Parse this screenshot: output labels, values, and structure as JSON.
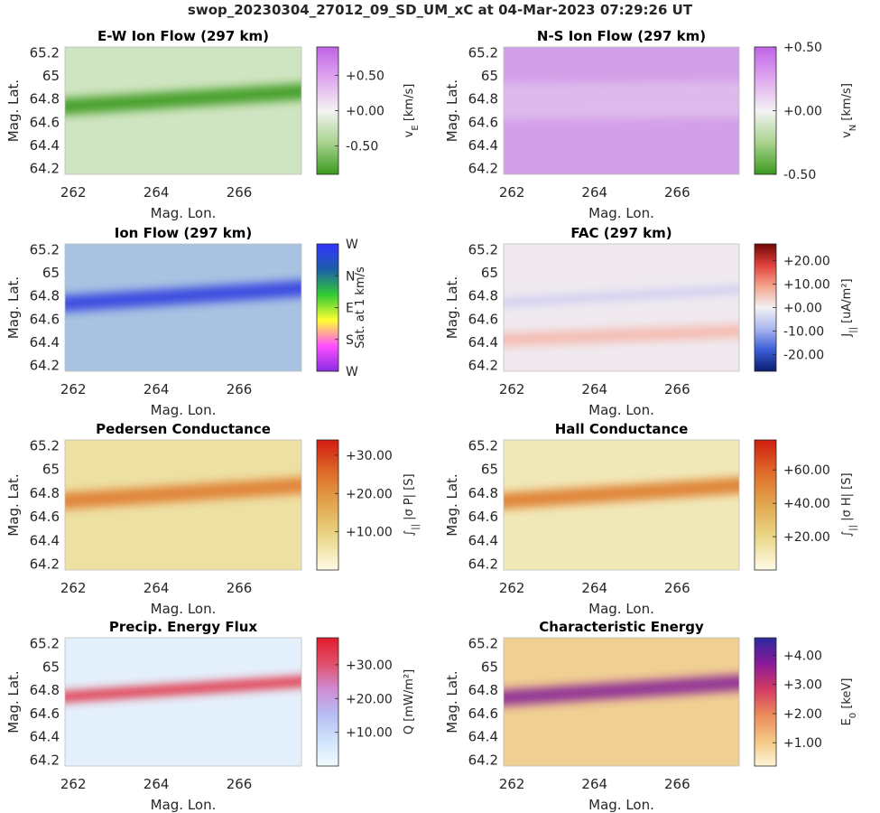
{
  "figure_title": "swop_20230304_27012_09_SD_UM_xC at 04-Mar-2023 07:29:26 UT",
  "chart_data": [
    {
      "type": "heatmap",
      "title": "E-W Ion Flow (297 km)",
      "xlabel": "Mag. Lon.",
      "ylabel": "Mag. Lat.",
      "xlim": [
        261.8,
        267.5
      ],
      "ylim": [
        64.15,
        65.25
      ],
      "xticks": [
        "262",
        "264",
        "266"
      ],
      "yticks": [
        "64.2",
        "64.4",
        "64.6",
        "64.8",
        "65",
        "65.2"
      ],
      "colorbar": {
        "label_main": "v",
        "label_sub": "E",
        "label_unit": " [km/s]",
        "range": [
          -0.9,
          0.9
        ],
        "ticks": [
          {
            "v": 0.5,
            "t": "+0.50"
          },
          {
            "v": 0.0,
            "t": "+0.00"
          },
          {
            "v": -0.5,
            "t": "-0.50"
          }
        ],
        "colors": [
          "#3a9a1e",
          "#a9d38f",
          "#f3f3f3",
          "#dfa8ee",
          "#c063e6"
        ]
      },
      "feature": {
        "dominant": "eastward/westward flow band negative (green) along 64.7-64.9 lat, strongest near -0.9 km/s",
        "band_lat_start": 64.72,
        "band_lat_end": 64.87
      },
      "colors": {
        "background": "#cfe4c1",
        "band": "#3a9a1e"
      }
    },
    {
      "type": "heatmap",
      "title": "N-S Ion Flow (297 km)",
      "xlabel": "Mag. Lon.",
      "ylabel": "Mag. Lat.",
      "xlim": [
        261.8,
        267.5
      ],
      "ylim": [
        64.15,
        65.25
      ],
      "xticks": [
        "262",
        "264",
        "266"
      ],
      "yticks": [
        "64.2",
        "64.4",
        "64.6",
        "64.8",
        "65",
        "65.2"
      ],
      "colorbar": {
        "label_main": "v",
        "label_sub": "N",
        "label_unit": " [km/s]",
        "range": [
          -0.5,
          0.5
        ],
        "ticks": [
          {
            "v": 0.5,
            "t": "+0.50"
          },
          {
            "v": 0.0,
            "t": "+0.00"
          },
          {
            "v": -0.5,
            "t": "-0.50"
          }
        ],
        "colors": [
          "#3a9a1e",
          "#a9d38f",
          "#f3f3f3",
          "#dfa8ee",
          "#c063e6"
        ]
      },
      "feature": {
        "dominant": "uniform northward flow ~+0.3 km/s (violet)"
      },
      "colors": {
        "background": "#d39fe8",
        "band": "#e6cdf0"
      }
    },
    {
      "type": "heatmap",
      "title": "Ion Flow (297 km)",
      "xlabel": "Mag. Lon.",
      "ylabel": "Mag. Lat.",
      "xlim": [
        261.8,
        267.5
      ],
      "ylim": [
        64.15,
        65.25
      ],
      "xticks": [
        "262",
        "264",
        "266"
      ],
      "yticks": [
        "64.2",
        "64.4",
        "64.6",
        "64.8",
        "65",
        "65.2"
      ],
      "colorbar": {
        "label_main": "Sat. at 1 km/s",
        "label_sub": "",
        "label_unit": "",
        "ticks": [
          {
            "v": 4,
            "t": "W"
          },
          {
            "v": 3,
            "t": "N"
          },
          {
            "v": 2,
            "t": "E"
          },
          {
            "v": 1,
            "t": "S"
          },
          {
            "v": 0,
            "t": "W"
          }
        ],
        "colors": [
          "#8a2be2",
          "#ff4fff",
          "#ffff33",
          "#33cc33",
          "#1b5fa8",
          "#3333ff"
        ]
      },
      "feature": {
        "dominant": "westward flow (blue) band along 64.7-64.9 lat"
      },
      "colors": {
        "background": "#a8c3e2",
        "band": "#3340e0"
      }
    },
    {
      "type": "heatmap",
      "title": "FAC (297 km)",
      "xlabel": "Mag. Lon.",
      "ylabel": "Mag. Lat.",
      "xlim": [
        261.8,
        267.5
      ],
      "ylim": [
        64.15,
        65.25
      ],
      "xticks": [
        "262",
        "264",
        "266"
      ],
      "yticks": [
        "64.2",
        "64.4",
        "64.6",
        "64.8",
        "65",
        "65.2"
      ],
      "colorbar": {
        "label_main": "J",
        "label_sub": "||",
        "label_unit": " [uA/m²]",
        "range": [
          -27,
          27
        ],
        "ticks": [
          {
            "v": 20,
            "t": "+20.00"
          },
          {
            "v": 10,
            "t": "+10.00"
          },
          {
            "v": 0,
            "t": "+0.00"
          },
          {
            "v": -10,
            "t": "-10.00"
          },
          {
            "v": -20,
            "t": "-20.00"
          }
        ],
        "colors": [
          "#0a1e6e",
          "#3a5cd6",
          "#aab6f0",
          "#f2f2f2",
          "#f4a48e",
          "#e0403a",
          "#6e0808"
        ]
      },
      "feature": {
        "dominant": "weak downward current band near 64.8 lat (blue), weak upward band near 64.45 lat (red)"
      },
      "colors": {
        "background": "#efe9ef",
        "band": "#c6c8f2"
      }
    },
    {
      "type": "heatmap",
      "title": "Pedersen Conductance",
      "xlabel": "Mag. Lon.",
      "ylabel": "Mag. Lat.",
      "xlim": [
        261.8,
        267.5
      ],
      "ylim": [
        64.15,
        65.25
      ],
      "xticks": [
        "262",
        "264",
        "266"
      ],
      "yticks": [
        "64.2",
        "64.4",
        "64.6",
        "64.8",
        "65",
        "65.2"
      ],
      "colorbar": {
        "label_main": "∫",
        "label_sub": "||",
        "label_unit": " |σ P| [S]",
        "range": [
          0,
          34
        ],
        "ticks": [
          {
            "v": 30,
            "t": "+30.00"
          },
          {
            "v": 20,
            "t": "+20.00"
          },
          {
            "v": 10,
            "t": "+10.00"
          }
        ],
        "colors": [
          "#fffbe8",
          "#ead88a",
          "#e2a850",
          "#de6b28",
          "#d01c10"
        ]
      },
      "feature": {
        "dominant": "conductance peak ~25 S along 64.75 lat near 262-264 lon"
      },
      "colors": {
        "background": "#ede0a3",
        "band": "#df7a2f"
      }
    },
    {
      "type": "heatmap",
      "title": "Hall Conductance",
      "xlabel": "Mag. Lon.",
      "ylabel": "Mag. Lat.",
      "xlim": [
        261.8,
        267.5
      ],
      "ylim": [
        64.15,
        65.25
      ],
      "xticks": [
        "262",
        "264",
        "266"
      ],
      "yticks": [
        "64.2",
        "64.4",
        "64.6",
        "64.8",
        "65",
        "65.2"
      ],
      "colorbar": {
        "label_main": "∫",
        "label_sub": "||",
        "label_unit": " |σ H| [S]",
        "range": [
          0,
          78
        ],
        "ticks": [
          {
            "v": 60,
            "t": "+60.00"
          },
          {
            "v": 40,
            "t": "+40.00"
          },
          {
            "v": 20,
            "t": "+20.00"
          }
        ],
        "colors": [
          "#fffbe8",
          "#ead88a",
          "#e2a850",
          "#de6b28",
          "#d01c10"
        ]
      },
      "feature": {
        "dominant": "conductance peak ~60 S along 64.8 lat near 263-264 lon"
      },
      "colors": {
        "background": "#f1e8b8",
        "band": "#de7a2a"
      }
    },
    {
      "type": "heatmap",
      "title": "Precip. Energy Flux",
      "xlabel": "Mag. Lon.",
      "ylabel": "Mag. Lat.",
      "xlim": [
        261.8,
        267.5
      ],
      "ylim": [
        64.15,
        65.25
      ],
      "xticks": [
        "262",
        "264",
        "266"
      ],
      "yticks": [
        "64.2",
        "64.4",
        "64.6",
        "64.8",
        "65",
        "65.2"
      ],
      "colorbar": {
        "label_main": "Q",
        "label_sub": "",
        "label_unit": " [mW/m²]",
        "range": [
          0,
          38
        ],
        "ticks": [
          {
            "v": 30,
            "t": "+30.00"
          },
          {
            "v": 20,
            "t": "+20.00"
          },
          {
            "v": 10,
            "t": "+10.00"
          }
        ],
        "colors": [
          "#f2fafe",
          "#cfe3fb",
          "#b7bdf4",
          "#cf8bd3",
          "#e0506a",
          "#e01c2c"
        ]
      },
      "feature": {
        "dominant": "narrow high energy flux arc ~35 mW/m² along 64.75-64.85 lat"
      },
      "colors": {
        "background": "#e3f0fc",
        "band": "#e0283a"
      }
    },
    {
      "type": "heatmap",
      "title": "Characteristic Energy",
      "xlabel": "Mag. Lon.",
      "ylabel": "Mag. Lat.",
      "xlim": [
        261.8,
        267.5
      ],
      "ylim": [
        64.15,
        65.25
      ],
      "xticks": [
        "262",
        "264",
        "266"
      ],
      "yticks": [
        "64.2",
        "64.4",
        "64.6",
        "64.8",
        "65",
        "65.2"
      ],
      "colorbar": {
        "label_main": "E",
        "label_sub": "0",
        "label_unit": " [keV]",
        "range": [
          0.2,
          4.6
        ],
        "ticks": [
          {
            "v": 4,
            "t": "+4.00"
          },
          {
            "v": 3,
            "t": "+3.00"
          },
          {
            "v": 2,
            "t": "+2.00"
          },
          {
            "v": 1,
            "t": "+1.00"
          }
        ],
        "colors": [
          "#fdf5d6",
          "#f4c784",
          "#ec8a5a",
          "#d23a63",
          "#8a1a9a",
          "#2a2a9c"
        ]
      },
      "feature": {
        "dominant": "characteristic energy peak ~4 keV along 64.78 lat near 264 lon"
      },
      "colors": {
        "background": "#f0cf92",
        "band": "#8a2596"
      }
    }
  ]
}
